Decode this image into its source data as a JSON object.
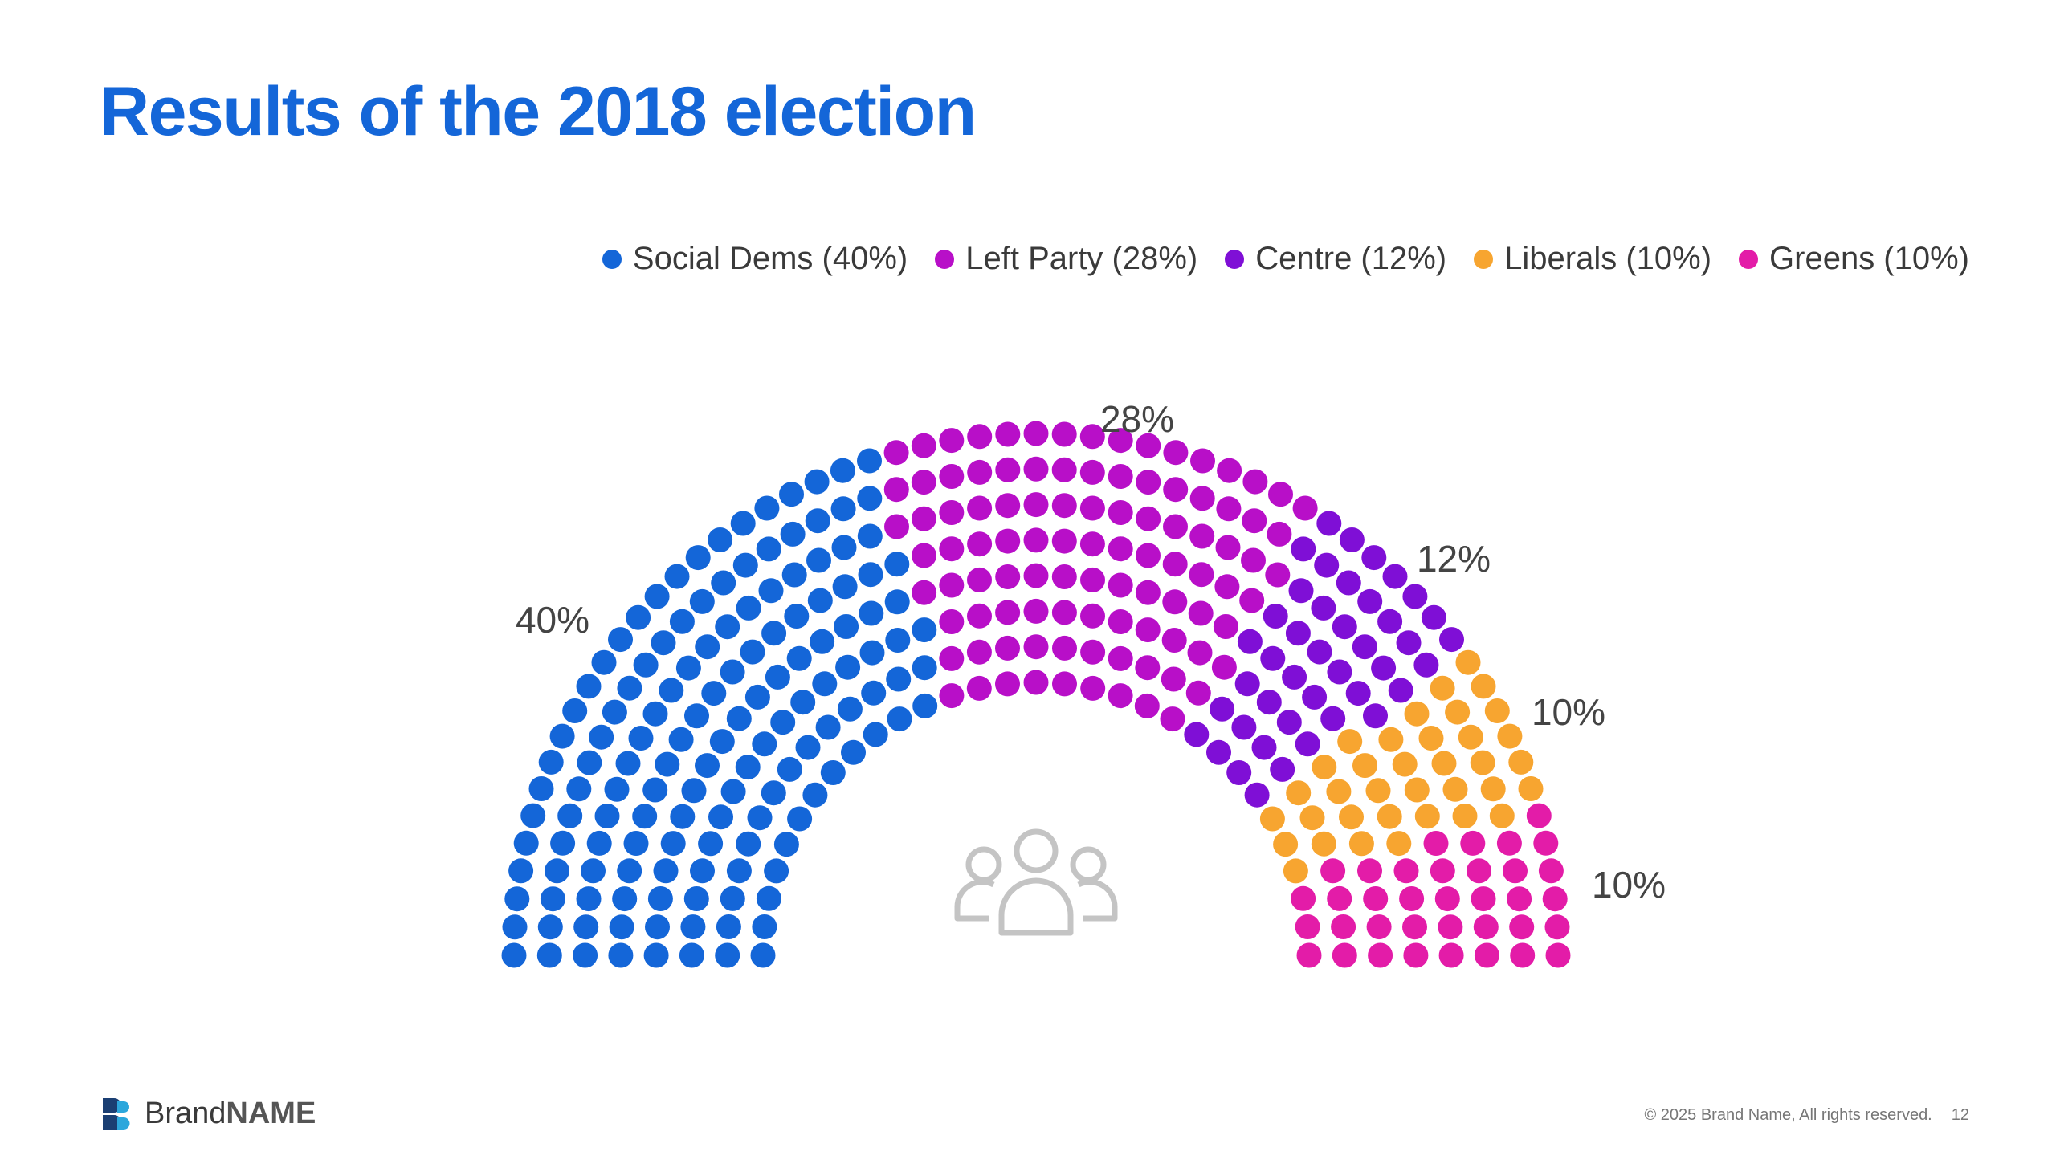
{
  "page": {
    "title": "Results of the 2018 election"
  },
  "chart_data": {
    "type": "parliament",
    "title": "Results of the 2018 election",
    "series": [
      {
        "name": "Social Dems",
        "legend_label": "Social Dems (40%)",
        "value": 40,
        "label": "40%",
        "color": "#1466d8"
      },
      {
        "name": "Left Party",
        "legend_label": "Left Party (28%)",
        "value": 28,
        "label": "28%",
        "color": "#b80fc8"
      },
      {
        "name": "Centre",
        "legend_label": "Centre (12%)",
        "value": 12,
        "label": "12%",
        "color": "#7f0fd6"
      },
      {
        "name": "Liberals",
        "legend_label": "Liberals (10%)",
        "value": 10,
        "label": "10%",
        "color": "#f7a530"
      },
      {
        "name": "Greens",
        "legend_label": "Greens (10%)",
        "value": 10,
        "label": "10%",
        "color": "#e31ca8"
      }
    ],
    "center_icon": "people-group-icon"
  },
  "footer": {
    "brand_prefix": "Brand",
    "brand_suffix": "NAME",
    "copyright": "© 2025 Brand Name, All rights reserved.",
    "page_number": "12"
  },
  "colors": {
    "accent": "#1466d8",
    "logo_dark": "#1b3f73",
    "logo_light": "#2ca7dc"
  }
}
